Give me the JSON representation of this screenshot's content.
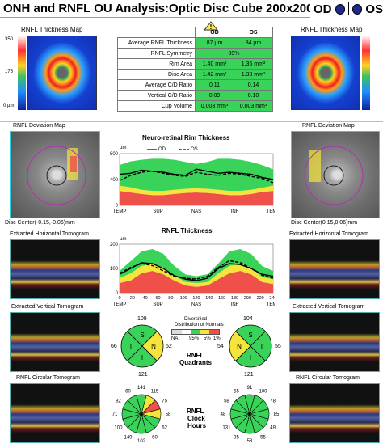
{
  "header": {
    "title": "ONH and RNFL OU Analysis:Optic Disc Cube 200x200",
    "od_label": "OD",
    "os_label": "OS"
  },
  "colors": {
    "normal_green": "#39d35a",
    "borderline_yellow": "#f5e43a",
    "outside_red": "#f0504a",
    "eye_dot": "#1c2a8c"
  },
  "thickness_map": {
    "left_title": "RNFL Thickness Map",
    "right_title": "RNFL Thickness Map",
    "scale_top": "350",
    "scale_mid": "175",
    "scale_bottom": "0 µm"
  },
  "metrics": {
    "col_od": "OD",
    "col_os": "OS",
    "rows": [
      {
        "label": "Average RNFL Thickness",
        "od": "87 µm",
        "os": "84 µm"
      },
      {
        "label": "RNFL Symmetry",
        "both": "89%"
      },
      {
        "label": "Rim Area",
        "od": "1.40 mm²",
        "os": "1.36 mm²"
      },
      {
        "label": "Disc Area",
        "od": "1.42 mm²",
        "os": "1.38 mm²"
      },
      {
        "label": "Average C/D Ratio",
        "od": "0.11",
        "os": "0.14"
      },
      {
        "label": "Vertical C/D Ratio",
        "od": "0.09",
        "os": "0.10"
      },
      {
        "label": "Cup Volume",
        "od": "0.003 mm³",
        "os": "0.003 mm³"
      }
    ]
  },
  "deviation_map": {
    "left_title": "RNFL Deviation Map",
    "right_title": "RNFL Deviation Map",
    "left_center": "Disc Center(-0.15,-0.06)mm",
    "right_center": "Disc Center(0.15,0.06)mm"
  },
  "tomograms": {
    "left_horizontal": "Extracted Horizontal Tomogram",
    "right_horizontal": "Extracted Horizontal Tomogram",
    "left_vertical": "Extracted Vertical Tomogram",
    "right_vertical": "Extracted Vertical Tomogram",
    "left_circular": "RNFL Circular Tomogram",
    "right_circular": "RNFL Circular Tomogram"
  },
  "rim_chart": {
    "title": "Neuro-retinal Rim Thickness",
    "unit": "µm",
    "legend_od": "OD",
    "legend_os": "OS",
    "yticks": [
      "800",
      "400",
      "0"
    ],
    "xticks": [
      "TEMP",
      "SUP",
      "NAS",
      "INF",
      "TEMP"
    ]
  },
  "rnfl_chart": {
    "title": "RNFL Thickness",
    "unit": "µm",
    "yticks": [
      "200",
      "100",
      "0"
    ],
    "xticks": [
      "0",
      "20",
      "40",
      "60",
      "80",
      "100",
      "120",
      "140",
      "160",
      "180",
      "200",
      "220",
      "240"
    ],
    "xlabels": [
      "TEMP",
      "SUP",
      "NAS",
      "INF",
      "TEMP"
    ]
  },
  "legend_box": {
    "title": "Diversified",
    "subtitle": "Distribution of Normals",
    "labels": [
      "NA",
      "95%",
      "5%",
      "1%"
    ]
  },
  "quadrants": {
    "label_line1": "RNFL",
    "label_line2": "Quadrants",
    "od": {
      "S": "109",
      "N": "52",
      "I": "121",
      "T": "66"
    },
    "os": {
      "S": "104",
      "N": "55",
      "I": "121",
      "T": "54"
    },
    "od_letters": [
      "S",
      "N",
      "I",
      "T"
    ],
    "os_letters": [
      "S",
      "T",
      "I",
      "N"
    ]
  },
  "clock_hours": {
    "label_line1": "RNFL",
    "label_line2": "Clock",
    "label_line3": "Hours",
    "od": [
      "141",
      "115",
      "75",
      "58",
      "62",
      "60",
      "102",
      "149",
      "100",
      "71",
      "82",
      "60"
    ],
    "os": [
      "91",
      "100",
      "78",
      "85",
      "49",
      "55",
      "58",
      "95",
      "131",
      "48",
      "58",
      "55"
    ]
  }
}
